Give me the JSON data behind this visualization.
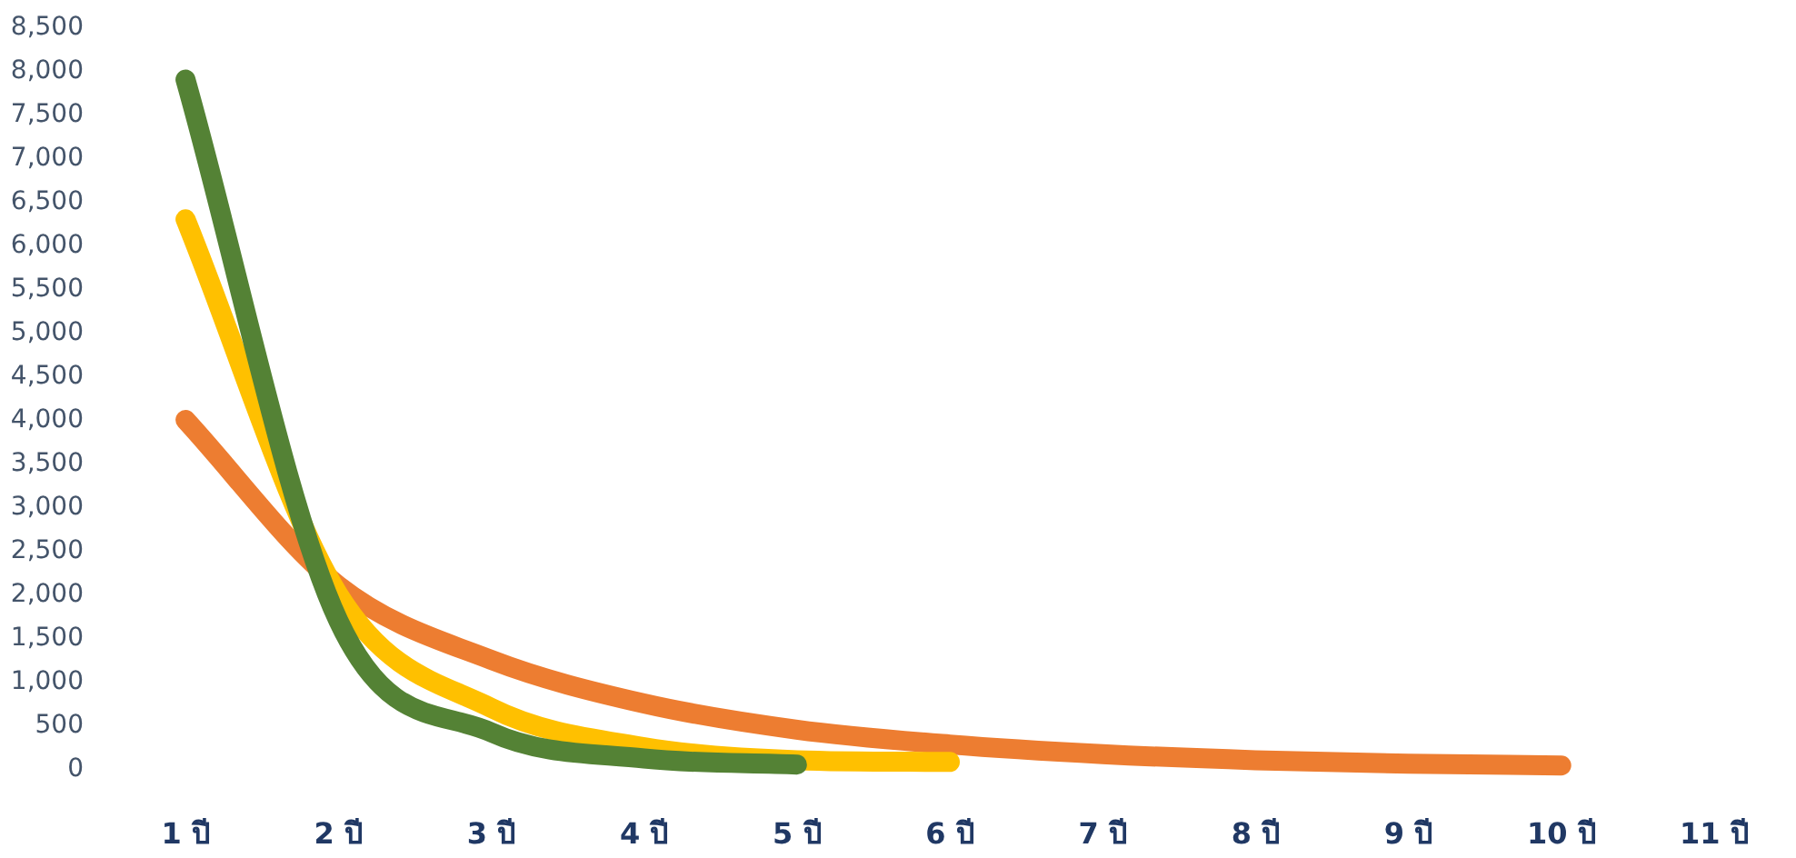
{
  "chart_data": {
    "type": "line",
    "categories": [
      "1 ปี",
      "2 ปี",
      "3 ปี",
      "4 ปี",
      "5 ปี",
      "6 ปี",
      "7 ปี",
      "8 ปี",
      "9 ปี",
      "10 ปี",
      "11 ปี"
    ],
    "series": [
      {
        "color": "#ed7d31",
        "values": [
          4000,
          2100,
          1250,
          750,
          450,
          280,
          170,
          100,
          60,
          40,
          null
        ]
      },
      {
        "color": "#ffc000",
        "values": [
          6300,
          2000,
          700,
          250,
          100,
          80,
          null,
          null,
          null,
          null,
          null
        ]
      },
      {
        "color": "#548235",
        "values": [
          7900,
          1700,
          420,
          120,
          50,
          null,
          null,
          null,
          null,
          null,
          null
        ]
      }
    ],
    "ylim": [
      0,
      8500
    ],
    "yticks": [
      {
        "value": 0,
        "label": "0"
      },
      {
        "value": 500,
        "label": "500"
      },
      {
        "value": 1000,
        "label": "1,000"
      },
      {
        "value": 1500,
        "label": "1,500"
      },
      {
        "value": 2000,
        "label": "2,000"
      },
      {
        "value": 2500,
        "label": "2,500"
      },
      {
        "value": 3000,
        "label": "3,000"
      },
      {
        "value": 3500,
        "label": "3,500"
      },
      {
        "value": 4000,
        "label": "4,000"
      },
      {
        "value": 4500,
        "label": "4,500"
      },
      {
        "value": 5000,
        "label": "5,000"
      },
      {
        "value": 5500,
        "label": "5,500"
      },
      {
        "value": 6000,
        "label": "6,000"
      },
      {
        "value": 6500,
        "label": "6,500"
      },
      {
        "value": 7000,
        "label": "7,000"
      },
      {
        "value": 7500,
        "label": "7,500"
      },
      {
        "value": 8000,
        "label": "8,000"
      },
      {
        "value": 8500,
        "label": "8,500"
      }
    ]
  }
}
